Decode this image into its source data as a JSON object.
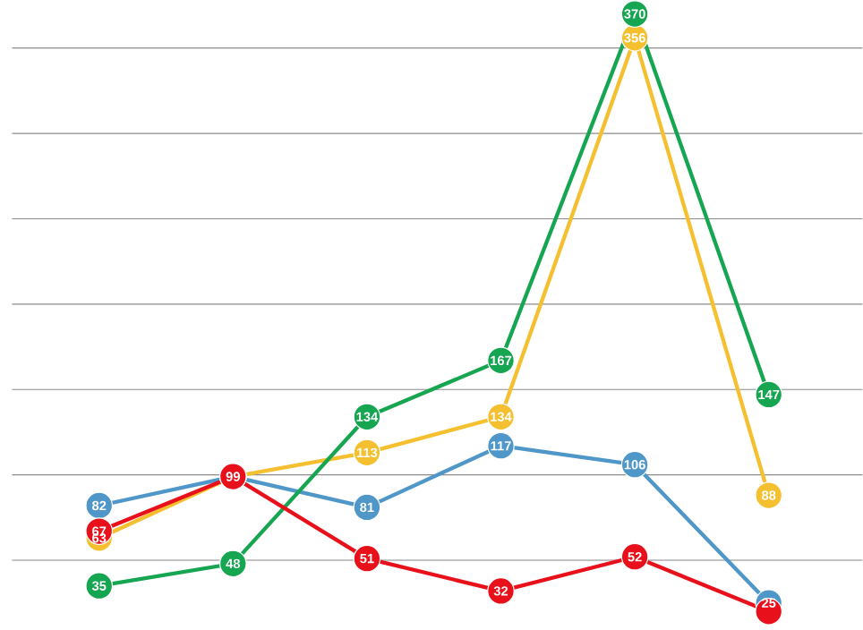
{
  "chart_data": {
    "type": "line",
    "categories": [
      null,
      null,
      null,
      null,
      null,
      null
    ],
    "grid": "y",
    "marker": "circle",
    "line_style": "solid",
    "series": [
      {
        "color": "#4f97c9",
        "values": [
          82,
          99,
          81,
          117,
          106,
          25
        ],
        "value_labels": [
          "82",
          null,
          "81",
          "117",
          "106",
          "25"
        ]
      },
      {
        "color": "#f5c030",
        "values": [
          63,
          99,
          113,
          134,
          356,
          88
        ],
        "value_labels": [
          "63",
          null,
          "113",
          "134",
          "356",
          "88"
        ]
      },
      {
        "color": "#16a550",
        "values": [
          35,
          48,
          134,
          167,
          370,
          147
        ],
        "value_labels": [
          "35",
          "48",
          "134",
          "167",
          "370",
          "147"
        ]
      },
      {
        "color": "#e8101a",
        "values": [
          67,
          99,
          51,
          32,
          52,
          20
        ],
        "value_labels": [
          "67",
          "99",
          "51",
          "32",
          "52",
          null
        ]
      }
    ]
  }
}
